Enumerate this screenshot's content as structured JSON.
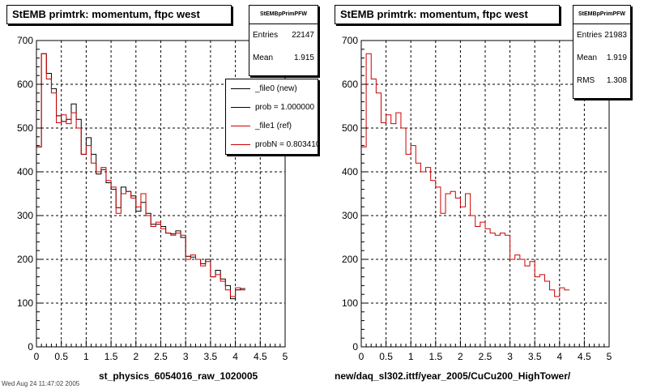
{
  "chart_data": [
    {
      "type": "histogram",
      "title": "StEMB primtrk: momentum, ftpc west",
      "xlabel": "st_physics_6054016_raw_1020005",
      "xlim": [
        0,
        5
      ],
      "ylim": [
        0,
        700
      ],
      "xticks": [
        "0",
        "0.5",
        "1",
        "1.5",
        "2",
        "2.5",
        "3",
        "3.5",
        "4",
        "4.5",
        "5"
      ],
      "yticks": [
        "0",
        "100",
        "200",
        "300",
        "400",
        "500",
        "600",
        "700"
      ],
      "grid": true,
      "bin_width": 0.1,
      "stats": {
        "name": "StEMBpPrimPFW",
        "rows": [
          {
            "label": "Entries",
            "value": "22147"
          },
          {
            "label": "Mean",
            "value": "1.915"
          }
        ]
      },
      "legend": {
        "placement": "top-right",
        "entries": [
          {
            "label": "_file0 (new)",
            "color": "#000000"
          },
          {
            "label": "prob = 1.000000",
            "color": "#000000"
          },
          {
            "label": "_file1 (ref)",
            "color": "#cc0000"
          },
          {
            "label": "probN = 0.803410",
            "color": "#cc0000"
          }
        ]
      },
      "series": [
        {
          "name": "_file0 (new)",
          "color": "#000000",
          "values": [
            457,
            670,
            625,
            590,
            528,
            515,
            520,
            555,
            520,
            440,
            478,
            440,
            395,
            405,
            375,
            360,
            318,
            365,
            355,
            345,
            310,
            330,
            305,
            280,
            280,
            275,
            260,
            258,
            265,
            250,
            207,
            205,
            200,
            190,
            200,
            160,
            175,
            155,
            140,
            110,
            130,
            133
          ]
        },
        {
          "name": "_file1 (ref)",
          "color": "#cc0000",
          "values": [
            457,
            670,
            612,
            580,
            512,
            530,
            510,
            535,
            500,
            440,
            460,
            420,
            400,
            410,
            380,
            365,
            305,
            350,
            355,
            340,
            320,
            350,
            300,
            275,
            285,
            270,
            260,
            255,
            260,
            255,
            200,
            210,
            200,
            185,
            195,
            160,
            165,
            150,
            130,
            115,
            135,
            130
          ]
        }
      ]
    },
    {
      "type": "histogram",
      "title": "StEMB primtrk: momentum, ftpc west",
      "xlabel": "new/daq_sl302.ittf/year_2005/CuCu200_HighTower/",
      "xlim": [
        0,
        5
      ],
      "ylim": [
        0,
        700
      ],
      "xticks": [
        "0",
        "0.5",
        "1",
        "1.5",
        "2",
        "2.5",
        "3",
        "3.5",
        "4",
        "4.5",
        "5"
      ],
      "yticks": [
        "0",
        "100",
        "200",
        "300",
        "400",
        "500",
        "600",
        "700"
      ],
      "grid": true,
      "bin_width": 0.1,
      "stats": {
        "name": "StEMBpPrimPFW",
        "rows": [
          {
            "label": "Entries",
            "value": "21983"
          },
          {
            "label": "Mean",
            "value": "1.919"
          },
          {
            "label": "RMS",
            "value": "1.308"
          }
        ]
      },
      "series": [
        {
          "name": "",
          "color": "#cc0000",
          "values": [
            457,
            670,
            612,
            580,
            512,
            530,
            510,
            535,
            500,
            440,
            460,
            420,
            400,
            410,
            380,
            365,
            305,
            350,
            355,
            340,
            320,
            350,
            300,
            275,
            285,
            270,
            260,
            255,
            260,
            255,
            200,
            210,
            200,
            185,
            195,
            160,
            165,
            150,
            130,
            115,
            135,
            130
          ]
        }
      ]
    }
  ],
  "footer_text": "Wed Aug 24 11:47:02 2005"
}
